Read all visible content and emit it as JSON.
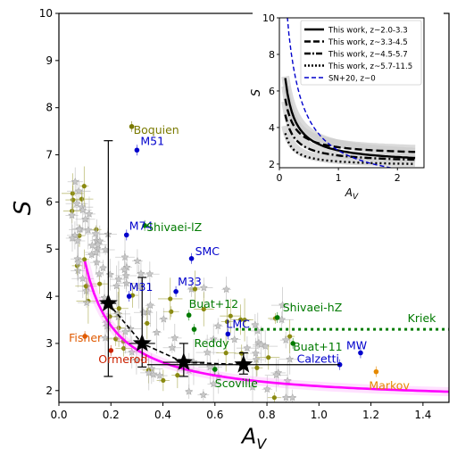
{
  "chart_data": [
    {
      "type": "scatter",
      "xlabel": "A_V",
      "ylabel": "S",
      "xlim": [
        0,
        1.5
      ],
      "ylim": [
        1.75,
        10
      ],
      "xticks": [
        "0.0",
        "0.2",
        "0.4",
        "0.6",
        "0.8",
        "1.0",
        "1.2",
        "1.4"
      ],
      "xtick_values": [
        0,
        0.2,
        0.4,
        0.6,
        0.8,
        1.0,
        1.2,
        1.4
      ],
      "yticks": [
        "2",
        "3",
        "4",
        "5",
        "6",
        "7",
        "8",
        "9",
        "10"
      ],
      "ytick_values": [
        2,
        3,
        4,
        5,
        6,
        7,
        8,
        9,
        10
      ],
      "colors": {
        "blue": "#0000cc",
        "green": "#007a00",
        "olive": "#7a7a00",
        "orange": "#e68a00",
        "red": "#cc2200",
        "orangered": "#e05a00",
        "magenta": "#ff00ff",
        "black": "#000000",
        "gray": "#8c8c8c"
      },
      "named_points": [
        {
          "label": "M51",
          "x": 0.3,
          "y": 7.1,
          "color": "blue"
        },
        {
          "label": "M74",
          "x": 0.26,
          "y": 5.3,
          "color": "blue"
        },
        {
          "label": "SMC",
          "x": 0.51,
          "y": 4.8,
          "color": "blue"
        },
        {
          "label": "M31",
          "x": 0.27,
          "y": 4.0,
          "color": "blue"
        },
        {
          "label": "M33",
          "x": 0.45,
          "y": 4.1,
          "color": "blue"
        },
        {
          "label": "LMC",
          "x": 0.65,
          "y": 3.2,
          "color": "blue"
        },
        {
          "label": "MW",
          "x": 1.16,
          "y": 2.8,
          "color": "blue"
        },
        {
          "label": "Calzetti",
          "x": 1.08,
          "y": 2.55,
          "color": "blue"
        },
        {
          "label": "Boquien",
          "x": 0.28,
          "y": 7.6,
          "color": "olive"
        },
        {
          "label": "Shivaei-lZ",
          "x": 0.33,
          "y": 5.5,
          "color": "green"
        },
        {
          "label": "Shivaei-hZ",
          "x": 0.84,
          "y": 3.55,
          "color": "green"
        },
        {
          "label": "Buat+12",
          "x": 0.5,
          "y": 3.6,
          "color": "green"
        },
        {
          "label": "Buat+11",
          "x": 0.9,
          "y": 3.0,
          "color": "green"
        },
        {
          "label": "Reddy",
          "x": 0.52,
          "y": 3.3,
          "color": "green"
        },
        {
          "label": "Scoville",
          "x": 0.6,
          "y": 2.45,
          "color": "green"
        },
        {
          "label": "Markov",
          "x": 1.22,
          "y": 2.4,
          "color": "orange"
        },
        {
          "label": "Fisher",
          "x": 0.1,
          "y": 3.15,
          "color": "orangered"
        },
        {
          "label": "Ormerod",
          "x": 0.2,
          "y": 2.85,
          "color": "red"
        },
        {
          "label": "Kriek",
          "x": 1.45,
          "y": 3.3,
          "color": "green"
        }
      ],
      "this_work_stars": [
        {
          "x": 0.19,
          "y": 3.85,
          "xerr": 0.03,
          "ylo": 2.3,
          "yhi": 7.3
        },
        {
          "x": 0.32,
          "y": 3.0,
          "xerr": 0.05,
          "ylo": 2.5,
          "yhi": 4.4
        },
        {
          "x": 0.48,
          "y": 2.6,
          "xerr": 0.08,
          "ylo": 2.3,
          "yhi": 3.0
        },
        {
          "x": 0.71,
          "y": 2.55,
          "xerr": 0.37,
          "ylo": 2.35,
          "yhi": 2.8
        }
      ],
      "kriek_line": {
        "y": 3.3,
        "x_from": 0.68,
        "x_to": 1.5
      },
      "fit_curve": {
        "x_from": 0.1,
        "x_to": 1.5
      },
      "grey_sample_count_note": "",
      "inset": {
        "xlabel": "A_V",
        "ylabel": "S",
        "xlim": [
          0,
          2.45
        ],
        "ylim": [
          1.8,
          10
        ],
        "xticks": [
          "0",
          "1",
          "2"
        ],
        "xtick_values": [
          0,
          1,
          2
        ],
        "yticks": [
          "2",
          "4",
          "6",
          "8",
          "10"
        ],
        "ytick_values": [
          2,
          4,
          6,
          8,
          10
        ],
        "legend": [
          {
            "label": "This work, z~2.0-3.3",
            "style": "solid"
          },
          {
            "label": "This work, z~3.3-4.5",
            "style": "dashed"
          },
          {
            "label": "This work, z~4.5-5.7",
            "style": "dashdot"
          },
          {
            "label": "This work, z~5.7-11.5",
            "style": "dotted"
          },
          {
            "label": "SN+20, z~0",
            "style": "bluedashed"
          }
        ],
        "legend_placement": "top-right"
      }
    }
  ]
}
